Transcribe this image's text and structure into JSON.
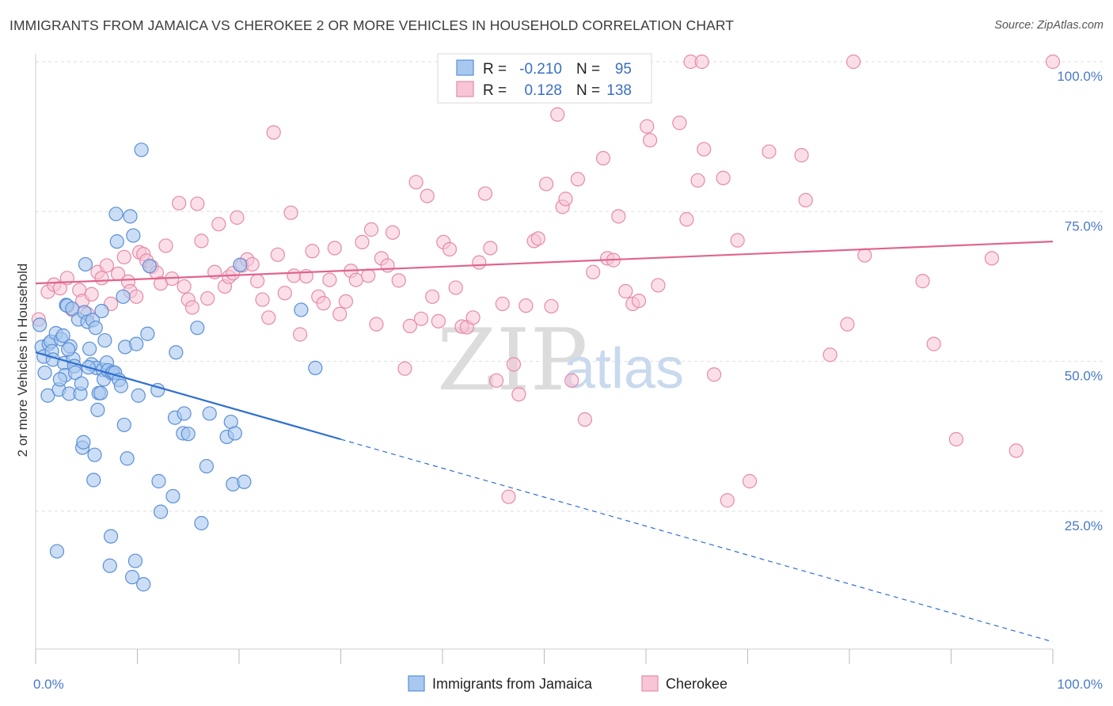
{
  "header": {
    "title": "IMMIGRANTS FROM JAMAICA VS CHEROKEE 2 OR MORE VEHICLES IN HOUSEHOLD CORRELATION CHART",
    "source": "Source: ZipAtlas.com"
  },
  "watermark": {
    "zip": "ZIP",
    "atlas": "atlas"
  },
  "colors": {
    "blue_fill": "#a9c8ef",
    "blue_stroke": "#5b8fd6",
    "blue_line": "#2f6fd0",
    "pink_fill": "#f7c5d6",
    "pink_stroke": "#e68aa8",
    "pink_line": "#e0648c",
    "axis_tick_text": "#4a7ac7",
    "grid": "#dddddd"
  },
  "legend": {
    "rows": [
      {
        "r_label": "R =",
        "r_value": "-0.210",
        "n_label": "N =",
        "n_value": "95",
        "color": "blue"
      },
      {
        "r_label": "R =",
        "r_value": "0.128",
        "n_label": "N =",
        "n_value": "138",
        "color": "pink"
      }
    ]
  },
  "chart_data": {
    "type": "scatter",
    "title": "IMMIGRANTS FROM JAMAICA VS CHEROKEE 2 OR MORE VEHICLES IN HOUSEHOLD CORRELATION CHART",
    "xlabel": "",
    "ylabel": "2 or more Vehicles in Household",
    "xlim": [
      0,
      100
    ],
    "ylim": [
      2,
      100
    ],
    "x_tick_labels": [
      "0.0%",
      "100.0%"
    ],
    "y_ticks": [
      {
        "value": 25,
        "label": "25.0%"
      },
      {
        "value": 50,
        "label": "50.0%"
      },
      {
        "value": 75,
        "label": "75.0%"
      },
      {
        "value": 100,
        "label": "100.0%"
      }
    ],
    "grid": true,
    "series": [
      {
        "name": "Immigrants from Jamaica",
        "color": "blue",
        "trend": {
          "x0": 0,
          "y0": 51.5,
          "x1": 30,
          "y1": 37.0,
          "dash_to_x": 100,
          "dash_to_y": 3.2
        },
        "points": [
          [
            0.4,
            56.1
          ],
          [
            0.6,
            52.4
          ],
          [
            0.8,
            50.8
          ],
          [
            0.9,
            48.1
          ],
          [
            1.2,
            44.3
          ],
          [
            1.3,
            52.9
          ],
          [
            1.5,
            53.3
          ],
          [
            1.6,
            51.7
          ],
          [
            1.7,
            50.3
          ],
          [
            2.0,
            54.7
          ],
          [
            2.1,
            18.3
          ],
          [
            2.3,
            45.3
          ],
          [
            2.5,
            53.7
          ],
          [
            2.7,
            54.3
          ],
          [
            2.8,
            49.7
          ],
          [
            2.9,
            47.7
          ],
          [
            3.0,
            59.4
          ],
          [
            3.1,
            59.3
          ],
          [
            3.3,
            44.6
          ],
          [
            3.4,
            52.5
          ],
          [
            3.6,
            58.8
          ],
          [
            3.7,
            50.4
          ],
          [
            3.8,
            49.2
          ],
          [
            3.9,
            48.1
          ],
          [
            4.2,
            57.0
          ],
          [
            4.4,
            44.6
          ],
          [
            4.5,
            46.3
          ],
          [
            4.6,
            35.6
          ],
          [
            4.7,
            36.5
          ],
          [
            4.8,
            58.2
          ],
          [
            4.9,
            66.2
          ],
          [
            5.1,
            56.6
          ],
          [
            5.3,
            52.1
          ],
          [
            5.5,
            49.5
          ],
          [
            5.6,
            56.9
          ],
          [
            5.7,
            30.2
          ],
          [
            5.8,
            34.4
          ],
          [
            5.9,
            55.6
          ],
          [
            6.0,
            48.9
          ],
          [
            6.1,
            41.9
          ],
          [
            6.2,
            44.7
          ],
          [
            6.4,
            44.7
          ],
          [
            6.5,
            58.4
          ],
          [
            6.6,
            48.6
          ],
          [
            6.7,
            47.0
          ],
          [
            6.8,
            53.5
          ],
          [
            7.0,
            49.8
          ],
          [
            7.1,
            48.5
          ],
          [
            7.3,
            15.9
          ],
          [
            7.4,
            20.8
          ],
          [
            7.5,
            48.0
          ],
          [
            7.6,
            48.2
          ],
          [
            7.8,
            48.1
          ],
          [
            7.9,
            74.6
          ],
          [
            8.0,
            70.0
          ],
          [
            8.2,
            46.9
          ],
          [
            8.4,
            45.9
          ],
          [
            8.6,
            60.8
          ],
          [
            8.7,
            39.4
          ],
          [
            8.8,
            52.4
          ],
          [
            9.0,
            33.8
          ],
          [
            9.3,
            74.2
          ],
          [
            9.5,
            14.0
          ],
          [
            9.6,
            71.0
          ],
          [
            9.8,
            16.7
          ],
          [
            9.9,
            52.9
          ],
          [
            10.1,
            44.3
          ],
          [
            10.4,
            85.3
          ],
          [
            10.6,
            12.8
          ],
          [
            11.0,
            54.6
          ],
          [
            11.2,
            65.9
          ],
          [
            12.0,
            45.2
          ],
          [
            12.1,
            30.0
          ],
          [
            12.3,
            24.9
          ],
          [
            13.5,
            27.5
          ],
          [
            13.7,
            40.6
          ],
          [
            13.8,
            51.5
          ],
          [
            14.5,
            38.0
          ],
          [
            14.6,
            41.3
          ],
          [
            15.0,
            37.9
          ],
          [
            15.9,
            55.6
          ],
          [
            16.3,
            23.0
          ],
          [
            16.8,
            32.5
          ],
          [
            17.1,
            41.3
          ],
          [
            18.8,
            37.4
          ],
          [
            19.2,
            39.9
          ],
          [
            19.4,
            29.5
          ],
          [
            19.6,
            38.0
          ],
          [
            20.1,
            66.1
          ],
          [
            20.5,
            29.9
          ],
          [
            26.1,
            58.6
          ],
          [
            27.5,
            48.9
          ],
          [
            3.2,
            52.0
          ],
          [
            5.2,
            49.0
          ],
          [
            2.4,
            47.0
          ]
        ]
      },
      {
        "name": "Cherokee",
        "color": "pink",
        "trend": {
          "x0": 0,
          "y0": 63.0,
          "x1": 100,
          "y1": 70.0
        },
        "points": [
          [
            0.3,
            57.0
          ],
          [
            1.2,
            61.6
          ],
          [
            1.8,
            62.8
          ],
          [
            2.4,
            62.2
          ],
          [
            3.1,
            63.9
          ],
          [
            3.6,
            58.6
          ],
          [
            4.3,
            61.9
          ],
          [
            4.6,
            60.1
          ],
          [
            5.1,
            57.9
          ],
          [
            5.5,
            61.2
          ],
          [
            6.1,
            64.9
          ],
          [
            6.5,
            63.9
          ],
          [
            7.0,
            66.0
          ],
          [
            7.4,
            59.6
          ],
          [
            8.1,
            64.6
          ],
          [
            8.7,
            67.4
          ],
          [
            9.1,
            63.3
          ],
          [
            9.3,
            61.7
          ],
          [
            9.9,
            60.8
          ],
          [
            10.2,
            68.2
          ],
          [
            10.6,
            67.9
          ],
          [
            10.9,
            66.8
          ],
          [
            11.4,
            65.8
          ],
          [
            11.9,
            64.8
          ],
          [
            12.3,
            63.0
          ],
          [
            12.8,
            69.3
          ],
          [
            13.4,
            63.8
          ],
          [
            14.1,
            76.4
          ],
          [
            14.6,
            62.5
          ],
          [
            15.0,
            60.3
          ],
          [
            15.4,
            59.0
          ],
          [
            15.9,
            76.3
          ],
          [
            16.3,
            70.1
          ],
          [
            16.9,
            60.5
          ],
          [
            17.6,
            64.9
          ],
          [
            18.0,
            72.9
          ],
          [
            18.6,
            62.5
          ],
          [
            19.0,
            64.1
          ],
          [
            19.4,
            64.7
          ],
          [
            19.8,
            74.0
          ],
          [
            20.3,
            66.0
          ],
          [
            20.8,
            67.0
          ],
          [
            21.3,
            66.2
          ],
          [
            21.8,
            63.4
          ],
          [
            22.3,
            60.3
          ],
          [
            22.9,
            57.3
          ],
          [
            23.4,
            88.2
          ],
          [
            23.8,
            67.8
          ],
          [
            24.5,
            61.4
          ],
          [
            25.1,
            74.8
          ],
          [
            25.4,
            64.3
          ],
          [
            26.0,
            54.5
          ],
          [
            26.6,
            64.2
          ],
          [
            27.2,
            68.4
          ],
          [
            27.8,
            60.8
          ],
          [
            28.3,
            59.7
          ],
          [
            28.9,
            63.6
          ],
          [
            29.4,
            68.9
          ],
          [
            29.9,
            57.9
          ],
          [
            30.5,
            60.0
          ],
          [
            31.0,
            65.1
          ],
          [
            31.5,
            63.6
          ],
          [
            32.1,
            69.9
          ],
          [
            32.7,
            64.3
          ],
          [
            33.0,
            72.0
          ],
          [
            33.5,
            56.2
          ],
          [
            34.0,
            67.2
          ],
          [
            34.6,
            66.0
          ],
          [
            35.1,
            71.5
          ],
          [
            35.7,
            63.5
          ],
          [
            36.3,
            48.8
          ],
          [
            36.8,
            55.9
          ],
          [
            37.4,
            79.9
          ],
          [
            37.9,
            57.1
          ],
          [
            38.5,
            77.6
          ],
          [
            39.0,
            60.8
          ],
          [
            39.6,
            56.7
          ],
          [
            40.1,
            69.9
          ],
          [
            40.7,
            68.7
          ],
          [
            41.3,
            62.3
          ],
          [
            41.9,
            55.8
          ],
          [
            42.4,
            55.7
          ],
          [
            43.0,
            57.3
          ],
          [
            43.6,
            66.5
          ],
          [
            44.2,
            78.0
          ],
          [
            44.7,
            68.9
          ],
          [
            45.3,
            46.8
          ],
          [
            45.9,
            59.6
          ],
          [
            46.5,
            27.4
          ],
          [
            47.0,
            49.5
          ],
          [
            47.5,
            44.5
          ],
          [
            48.2,
            59.3
          ],
          [
            49.0,
            70.1
          ],
          [
            49.4,
            70.5
          ],
          [
            50.2,
            79.6
          ],
          [
            50.7,
            59.2
          ],
          [
            51.3,
            91.2
          ],
          [
            51.8,
            75.8
          ],
          [
            52.1,
            77.1
          ],
          [
            52.7,
            46.8
          ],
          [
            53.3,
            80.4
          ],
          [
            54.0,
            40.3
          ],
          [
            54.8,
            64.9
          ],
          [
            55.8,
            83.9
          ],
          [
            56.2,
            67.2
          ],
          [
            56.8,
            66.9
          ],
          [
            57.3,
            74.2
          ],
          [
            58.0,
            61.7
          ],
          [
            58.7,
            59.6
          ],
          [
            59.3,
            60.1
          ],
          [
            60.1,
            89.2
          ],
          [
            60.4,
            86.9
          ],
          [
            61.2,
            62.7
          ],
          [
            63.3,
            89.8
          ],
          [
            64.0,
            73.7
          ],
          [
            65.1,
            80.2
          ],
          [
            65.7,
            85.4
          ],
          [
            66.7,
            47.8
          ],
          [
            67.6,
            80.6
          ],
          [
            68.0,
            26.8
          ],
          [
            69.0,
            70.2
          ],
          [
            70.2,
            30.0
          ],
          [
            72.1,
            85.0
          ],
          [
            75.3,
            84.4
          ],
          [
            75.7,
            76.9
          ],
          [
            78.1,
            51.1
          ],
          [
            79.8,
            56.2
          ],
          [
            81.5,
            67.7
          ],
          [
            87.2,
            63.4
          ],
          [
            88.3,
            52.9
          ],
          [
            90.5,
            37.0
          ],
          [
            94.0,
            67.2
          ],
          [
            96.4,
            35.1
          ],
          [
            64.4,
            100.0
          ],
          [
            65.5,
            100.0
          ],
          [
            80.4,
            100.0
          ],
          [
            100.0,
            100.0
          ],
          [
            53.6,
            100.0
          ]
        ]
      }
    ]
  },
  "bottom_legend": {
    "items": [
      {
        "label": "Immigrants from Jamaica",
        "color": "blue"
      },
      {
        "label": "Cherokee",
        "color": "pink"
      }
    ]
  }
}
